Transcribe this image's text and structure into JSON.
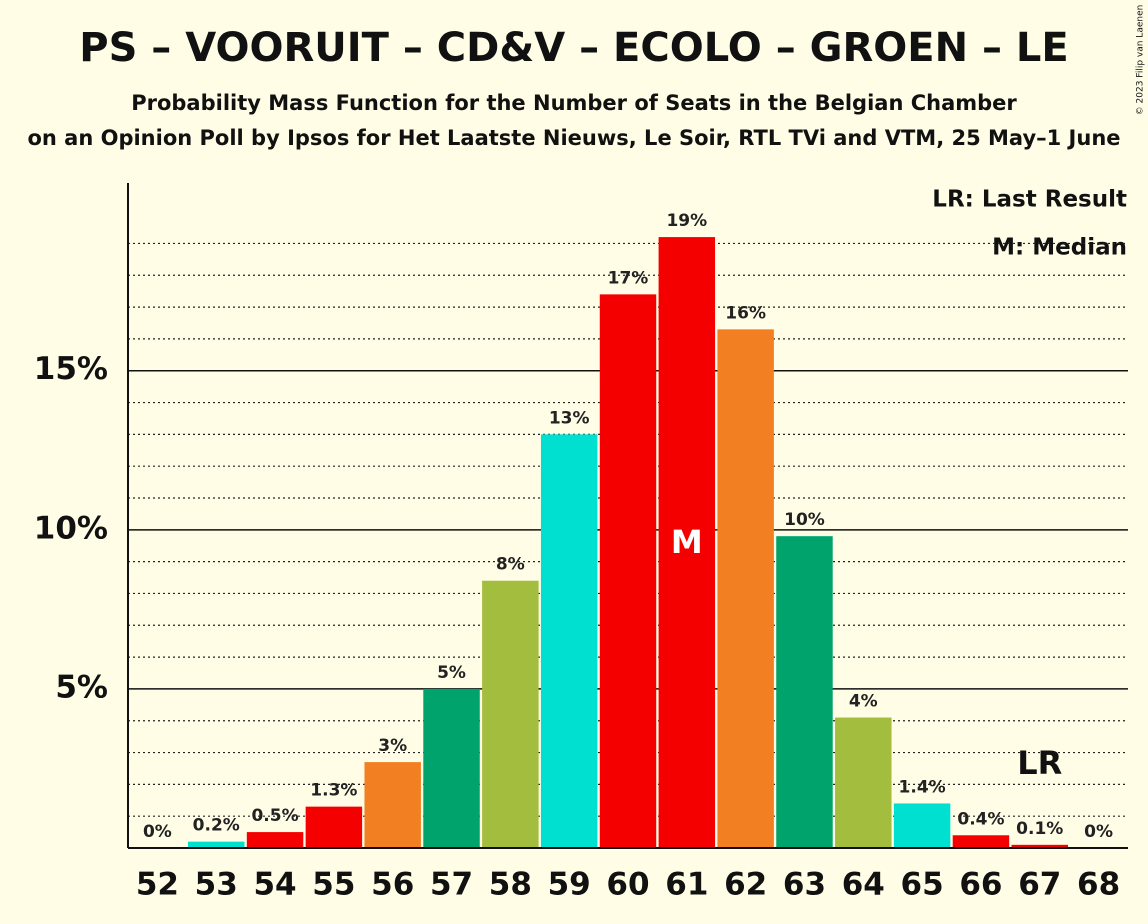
{
  "chart_data": {
    "type": "bar",
    "title": "PS – VOORUIT – CD&V – ECOLO – GROEN – LE",
    "subtitle": "Probability Mass Function for the Number of Seats in the Belgian Chamber",
    "subtitle2": "on an Opinion Poll by Ipsos for Het Laatste Nieuws, Le Soir, RTL TVi and VTM, 25 May–1 June",
    "copyright": "© 2023 Filip van Laenen",
    "categories": [
      "52",
      "53",
      "54",
      "55",
      "56",
      "57",
      "58",
      "59",
      "60",
      "61",
      "62",
      "63",
      "64",
      "65",
      "66",
      "67",
      "68"
    ],
    "values": [
      0,
      0.2,
      0.5,
      1.3,
      2.7,
      5.0,
      8.4,
      13.0,
      17.4,
      19.2,
      16.3,
      9.8,
      4.1,
      1.4,
      0.4,
      0.1,
      0
    ],
    "value_labels": [
      "0%",
      "0.2%",
      "0.5%",
      "1.3%",
      "3%",
      "5%",
      "8%",
      "13%",
      "17%",
      "19%",
      "16%",
      "10%",
      "4%",
      "1.4%",
      "0.4%",
      "0.1%",
      "0%"
    ],
    "colors": [
      "#00e0d0",
      "#00e0d0",
      "#f50000",
      "#f50000",
      "#f28022",
      "#00a36c",
      "#a3bd3f",
      "#00e0d0",
      "#f50000",
      "#f50000",
      "#f28022",
      "#00a36c",
      "#a3bd3f",
      "#00e0d0",
      "#f50000",
      "#f50000",
      "#f50000"
    ],
    "ylim": [
      0,
      20.9
    ],
    "yticks": [
      {
        "value": 5,
        "label": "5%"
      },
      {
        "value": 10,
        "label": "10%"
      },
      {
        "value": 15,
        "label": "15%"
      }
    ],
    "minor_yticks": [
      1,
      2,
      3,
      4,
      6,
      7,
      8,
      9,
      11,
      12,
      13,
      14,
      16,
      17,
      18,
      19
    ],
    "median_label": "M",
    "median_category": "61",
    "last_result_label": "LR",
    "last_result_category": "67",
    "legend": [
      "LR: Last Result",
      "M: Median"
    ],
    "grid": true
  }
}
